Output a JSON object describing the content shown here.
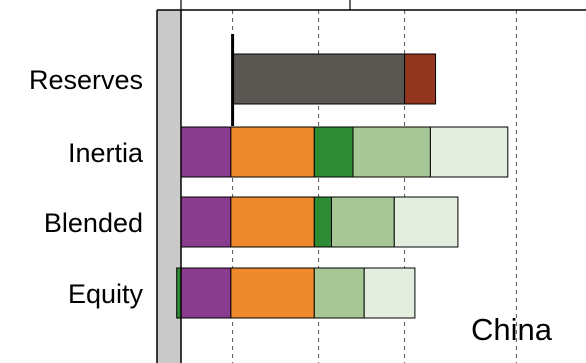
{
  "chart_data": {
    "type": "bar",
    "orientation": "horizontal",
    "stacked": true,
    "panel_label": "China",
    "categories": [
      "Reserves",
      "Inertia",
      "Blended",
      "Equity"
    ],
    "xlim": [
      -30,
      440
    ],
    "grid": "vertical-dashed",
    "segments": {
      "Reserves": [
        {
          "start": 60,
          "end": 260,
          "color": "#5a5651"
        },
        {
          "start": 260,
          "end": 296,
          "color": "#93361f"
        }
      ],
      "Inertia": [
        {
          "start": 0,
          "end": 58,
          "color": "#8a3d8f"
        },
        {
          "start": 58,
          "end": 155,
          "color": "#ef8a2c"
        },
        {
          "start": 155,
          "end": 200,
          "color": "#2e8b34"
        },
        {
          "start": 200,
          "end": 290,
          "color": "#a8c796"
        },
        {
          "start": 290,
          "end": 380,
          "color": "#e4eedf"
        }
      ],
      "Blended": [
        {
          "start": 0,
          "end": 58,
          "color": "#8a3d8f"
        },
        {
          "start": 58,
          "end": 155,
          "color": "#ef8a2c"
        },
        {
          "start": 155,
          "end": 175,
          "color": "#2e8b34"
        },
        {
          "start": 175,
          "end": 248,
          "color": "#a8c796"
        },
        {
          "start": 248,
          "end": 322,
          "color": "#e4eedf"
        }
      ],
      "Equity": [
        {
          "start": -5,
          "end": 0,
          "color": "#2e8b34"
        },
        {
          "start": 0,
          "end": 58,
          "color": "#8a3d8f"
        },
        {
          "start": 58,
          "end": 155,
          "color": "#ef8a2c"
        },
        {
          "start": 155,
          "end": 213,
          "color": "#a8c796"
        },
        {
          "start": 213,
          "end": 272,
          "color": "#e4eedf"
        }
      ]
    },
    "reference_line": {
      "category": "Reserves",
      "value": 60,
      "color": "#000000"
    }
  }
}
